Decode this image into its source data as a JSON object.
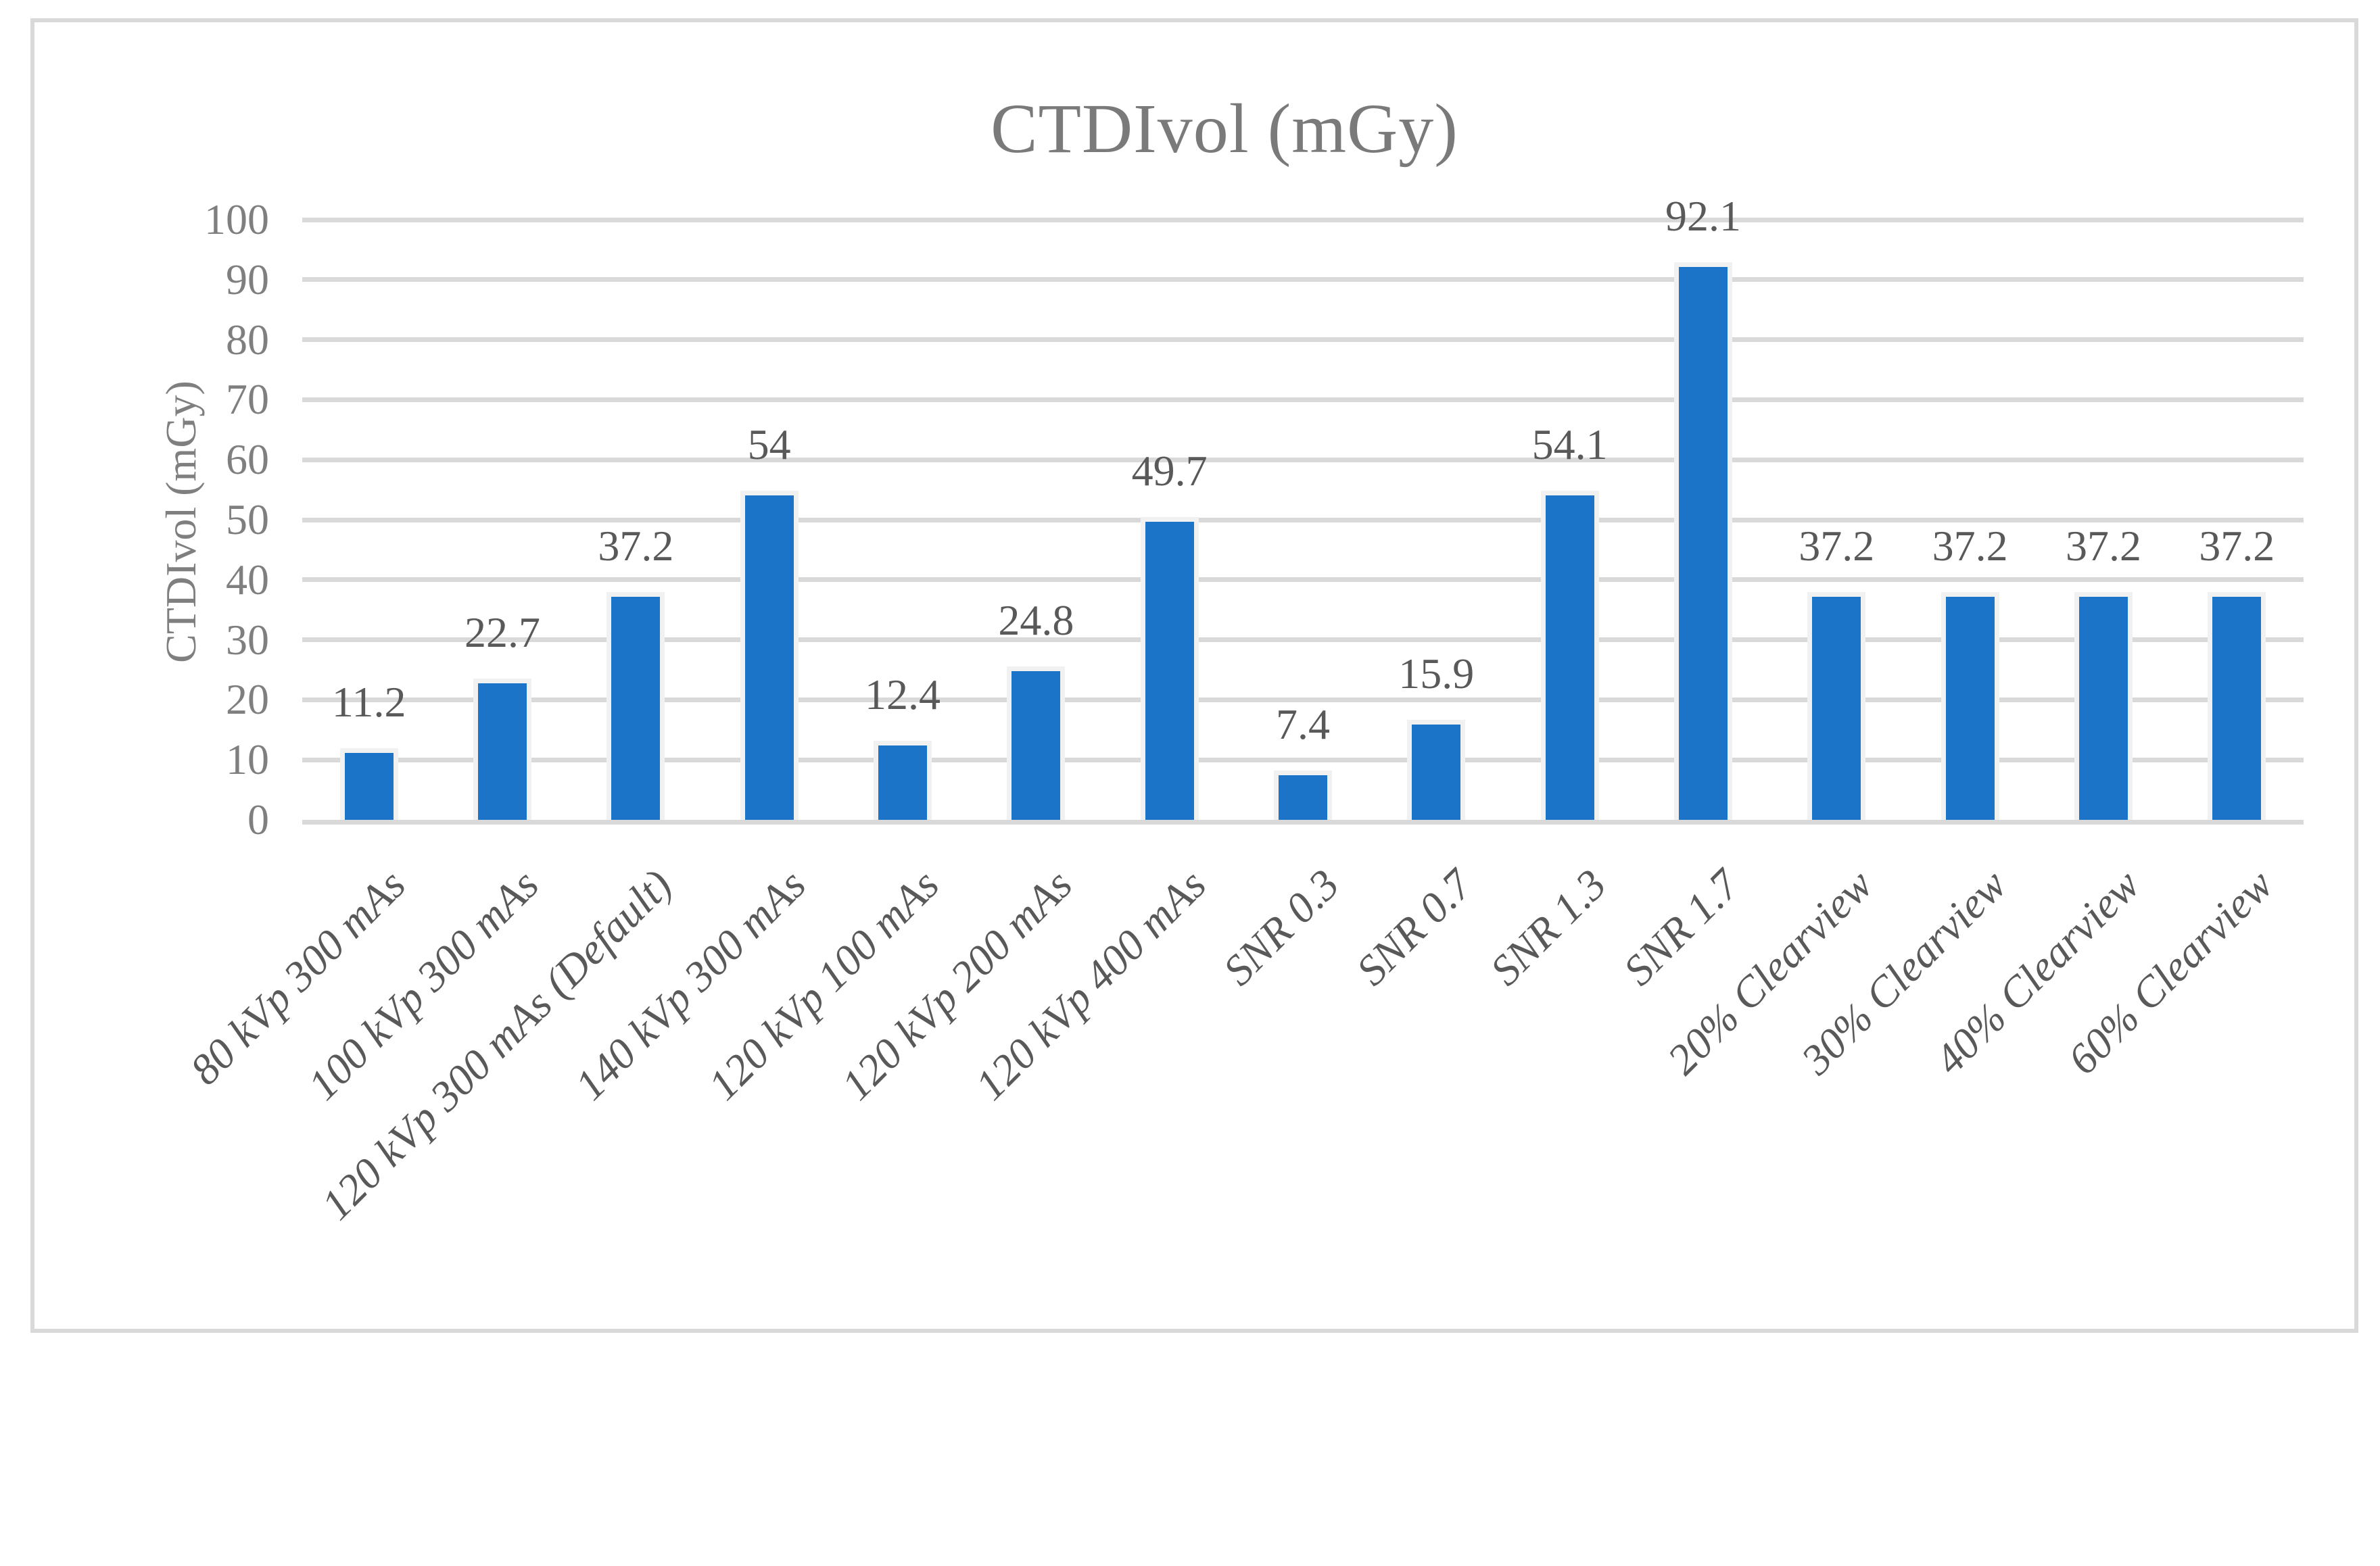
{
  "figure": {
    "title": "CTDIvol (mGy)",
    "y_axis_title": "CTDIvol (mGy)"
  },
  "colors": {
    "bar": "#1B74C8",
    "bar_outline": "#F1F1F1",
    "gridline": "#D9D9D9",
    "axis_line": "#D9D9D9",
    "frame_border": "#D9D9D9",
    "title_text": "#7A7A7A",
    "tick_text": "#7F7F7F",
    "label_text": "#595959",
    "background": "#FFFFFF"
  },
  "chart_data": {
    "type": "bar",
    "title": "CTDIvol (mGy)",
    "xlabel": "",
    "ylabel": "CTDIvol (mGy)",
    "ylim": [
      0,
      100
    ],
    "yticks": [
      0,
      10,
      20,
      30,
      40,
      50,
      60,
      70,
      80,
      90,
      100
    ],
    "grid": "horizontal",
    "legend": "none",
    "categories": [
      "80 kVp 300 mAs",
      "100 kVp 300 mAs",
      "120 kVp 300 mAs (Default)",
      "140 kVp 300 mAs",
      "120 kVp 100 mAs",
      "120 kVp 200 mAs",
      "120 kVp 400 mAs",
      "SNR 0.3",
      "SNR 0.7",
      "SNR 1.3",
      "SNR 1.7",
      "20% Clearview",
      "30% Clearview",
      "40% Clearview",
      "60% Clearview"
    ],
    "values": [
      11.2,
      22.7,
      37.2,
      54,
      12.4,
      24.8,
      49.7,
      7.4,
      15.9,
      54.1,
      92.1,
      37.2,
      37.2,
      37.2,
      37.2
    ],
    "value_labels": [
      "11.2",
      "22.7",
      "37.2",
      "54",
      "12.4",
      "24.8",
      "49.7",
      "7.4",
      "15.9",
      "54.1",
      "92.1",
      "37.2",
      "37.2",
      "37.2",
      "37.2"
    ]
  }
}
